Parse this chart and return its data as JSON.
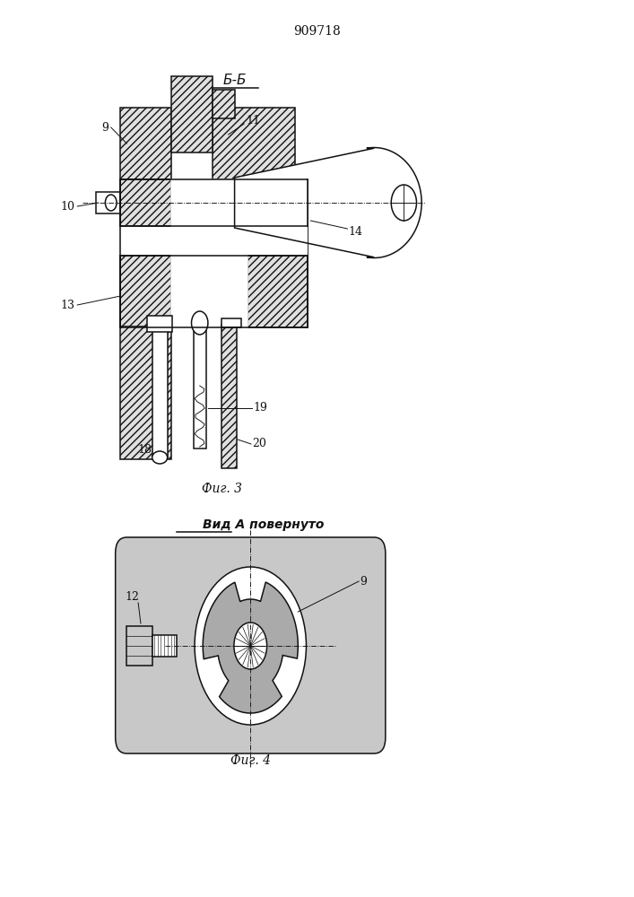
{
  "title": "909718",
  "fig3_label": "Фиг. 3",
  "fig4_label": "Фиг. 4",
  "view_label": "Вид А повернуто",
  "section_label": "Б-Б",
  "line_color": "#111111",
  "hatch_color": "#111111",
  "lw": 1.1,
  "lw_t": 0.65
}
